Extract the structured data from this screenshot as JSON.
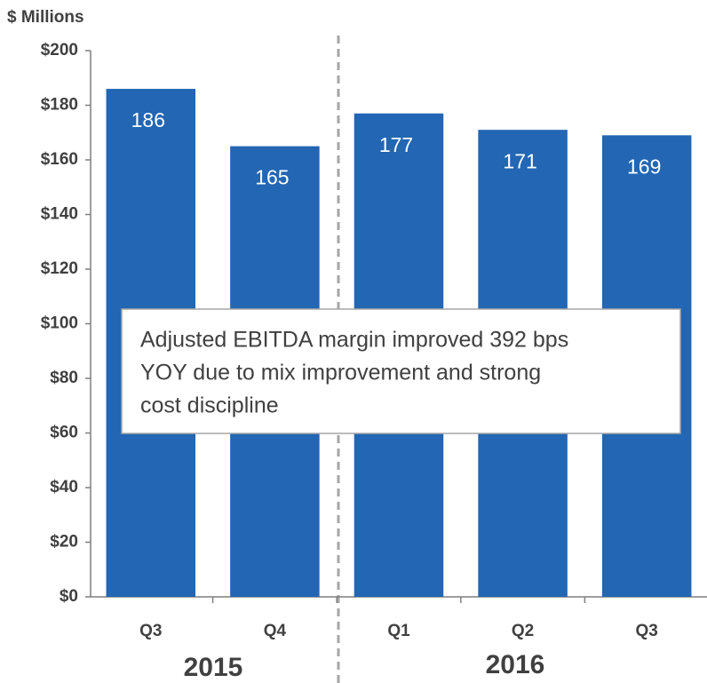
{
  "chart_data": {
    "type": "bar",
    "y_axis_label": "$ Millions",
    "categories": [
      "Q3",
      "Q4",
      "Q1",
      "Q2",
      "Q3"
    ],
    "values": [
      186,
      165,
      177,
      171,
      169
    ],
    "color": "#2266b4",
    "ylim": [
      0,
      200
    ],
    "yticks": [
      {
        "value": 0,
        "label": "$0"
      },
      {
        "value": 20,
        "label": "$20"
      },
      {
        "value": 40,
        "label": "$40"
      },
      {
        "value": 60,
        "label": "$60"
      },
      {
        "value": 80,
        "label": "$80"
      },
      {
        "value": 100,
        "label": "$100"
      },
      {
        "value": 120,
        "label": "$120"
      },
      {
        "value": 140,
        "label": "$140"
      },
      {
        "value": 160,
        "label": "$160"
      },
      {
        "value": 180,
        "label": "$180"
      },
      {
        "value": 200,
        "label": "$200"
      }
    ],
    "groups": [
      "2015",
      "2016"
    ],
    "annotation": [
      "Adjusted EBITDA margin improved 392 bps",
      "YOY due to mix improvement and strong",
      "cost discipline"
    ],
    "grid": false
  }
}
